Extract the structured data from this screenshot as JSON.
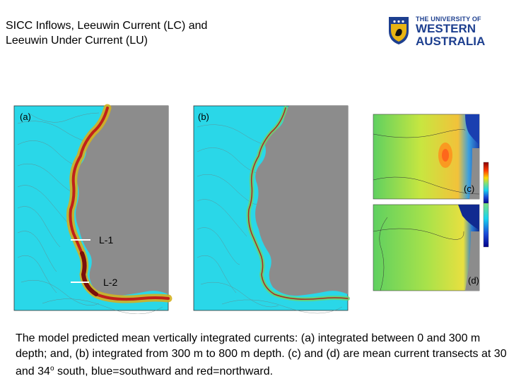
{
  "slide": {
    "title_line1": "SICC Inflows, Leeuwin Current (LC) and",
    "title_line2": "Leeuwin Under Current (LU)",
    "logo": {
      "line1": "THE UNIVERSITY OF",
      "line2": "WESTERN",
      "line3": "AUSTRALIA",
      "color": "#1d3f8f",
      "crest_color": "#e8b413"
    },
    "panels": {
      "a_label": "(a)",
      "b_label": "(b)",
      "c_label": "(c)",
      "d_label": "(d)",
      "line1_label": "L-1",
      "line2_label": "L-2"
    },
    "caption": {
      "part1": "The model predicted mean vertically integrated currents: (a) integrated between 0 and 300 m depth; and, (b) integrated from 300 m to 800 m depth. (c) and (d) are mean current  transects at 30 and 34",
      "superscript": "o",
      "part2": " south, blue=southward and red=northward."
    },
    "colors": {
      "ocean": "#2ad7e8",
      "land": "#8c8c8c",
      "current": "#c0201a"
    }
  }
}
